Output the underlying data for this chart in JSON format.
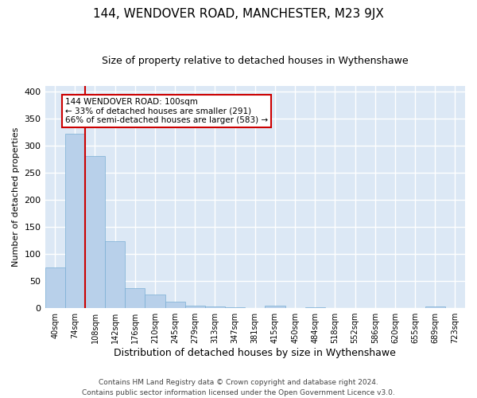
{
  "title": "144, WENDOVER ROAD, MANCHESTER, M23 9JX",
  "subtitle": "Size of property relative to detached houses in Wythenshawe",
  "xlabel": "Distribution of detached houses by size in Wythenshawe",
  "ylabel": "Number of detached properties",
  "footer": "Contains HM Land Registry data © Crown copyright and database right 2024.\nContains public sector information licensed under the Open Government Licence v3.0.",
  "categories": [
    "40sqm",
    "74sqm",
    "108sqm",
    "142sqm",
    "176sqm",
    "210sqm",
    "245sqm",
    "279sqm",
    "313sqm",
    "347sqm",
    "381sqm",
    "415sqm",
    "450sqm",
    "484sqm",
    "518sqm",
    "552sqm",
    "586sqm",
    "620sqm",
    "655sqm",
    "689sqm",
    "723sqm"
  ],
  "values": [
    75,
    322,
    280,
    123,
    37,
    25,
    12,
    4,
    3,
    1,
    0,
    5,
    0,
    2,
    0,
    0,
    0,
    0,
    0,
    3,
    0
  ],
  "bar_color": "#b8d0ea",
  "bar_edge_color": "#7aafd4",
  "vline_color": "#cc0000",
  "vline_x": 1.5,
  "annotation_line1": "144 WENDOVER ROAD: 100sqm",
  "annotation_line2": "← 33% of detached houses are smaller (291)",
  "annotation_line3": "66% of semi-detached houses are larger (583) →",
  "annotation_box_color": "#ffffff",
  "annotation_box_edge": "#cc0000",
  "ylim": [
    0,
    410
  ],
  "yticks": [
    0,
    50,
    100,
    150,
    200,
    250,
    300,
    350,
    400
  ],
  "background_color": "#dce8f5",
  "grid_color": "#ffffff",
  "title_fontsize": 11,
  "subtitle_fontsize": 9,
  "ylabel_fontsize": 8,
  "xlabel_fontsize": 9,
  "tick_fontsize": 8,
  "footer_fontsize": 6.5
}
